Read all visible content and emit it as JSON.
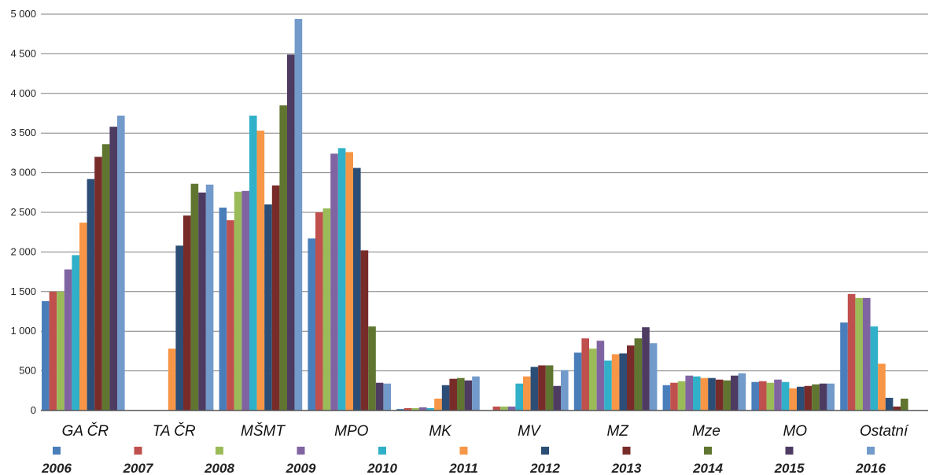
{
  "chart_data": {
    "type": "bar",
    "title": "",
    "xlabel": "",
    "ylabel": "",
    "ylim": [
      0,
      5000
    ],
    "yticks": [
      0,
      500,
      1000,
      1500,
      2000,
      2500,
      3000,
      3500,
      4000,
      4500,
      5000
    ],
    "ytick_labels": [
      "0",
      "500",
      "1 000",
      "1 500",
      "2 000",
      "2 500",
      "3 000",
      "3 500",
      "4 000",
      "4 500",
      "5 000"
    ],
    "grid": true,
    "legend_position": "bottom",
    "categories": [
      "GA ČR",
      "TA ČR",
      "MŠMT",
      "MPO",
      "MK",
      "MV",
      "MZ",
      "Mze",
      "MO",
      "Ostatní"
    ],
    "series": [
      {
        "name": "2006",
        "color": "#4a7ebb",
        "values": [
          1380,
          0,
          2560,
          2170,
          20,
          0,
          730,
          320,
          360,
          1110
        ]
      },
      {
        "name": "2007",
        "color": "#c0504d",
        "values": [
          1500,
          0,
          2400,
          2500,
          30,
          50,
          910,
          350,
          370,
          1470
        ]
      },
      {
        "name": "2008",
        "color": "#9bbb59",
        "values": [
          1500,
          0,
          2760,
          2550,
          30,
          50,
          780,
          370,
          350,
          1420
        ]
      },
      {
        "name": "2009",
        "color": "#8064a2",
        "values": [
          1780,
          0,
          2770,
          3240,
          40,
          50,
          880,
          440,
          390,
          1420
        ]
      },
      {
        "name": "2010",
        "color": "#31b0c9",
        "values": [
          1960,
          0,
          3720,
          3310,
          30,
          340,
          630,
          430,
          360,
          1060
        ]
      },
      {
        "name": "2011",
        "color": "#f79646",
        "values": [
          2370,
          780,
          3530,
          3260,
          150,
          430,
          710,
          410,
          280,
          590
        ]
      },
      {
        "name": "2012",
        "color": "#2c4d75",
        "values": [
          2920,
          2080,
          2600,
          3060,
          320,
          550,
          720,
          410,
          300,
          160
        ]
      },
      {
        "name": "2013",
        "color": "#772c2a",
        "values": [
          3200,
          2460,
          2840,
          2020,
          400,
          570,
          820,
          390,
          310,
          50
        ]
      },
      {
        "name": "2014",
        "color": "#5f7530",
        "values": [
          3360,
          2860,
          3850,
          1060,
          410,
          570,
          910,
          380,
          330,
          150
        ]
      },
      {
        "name": "2015",
        "color": "#4d3b62",
        "values": [
          3580,
          2750,
          4490,
          350,
          380,
          310,
          1050,
          440,
          340,
          0
        ]
      },
      {
        "name": "2016",
        "color": "#729aca",
        "values": [
          3720,
          2850,
          4940,
          340,
          430,
          510,
          850,
          470,
          340,
          0
        ]
      }
    ]
  }
}
